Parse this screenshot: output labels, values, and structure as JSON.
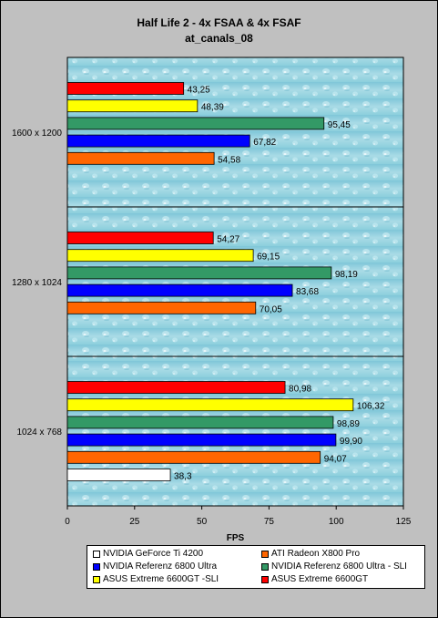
{
  "chart_data": {
    "type": "bar",
    "orientation": "horizontal",
    "title": "Half Life 2 - 4x FSAA & 4x FSAF",
    "subtitle": "at_canals_08",
    "xlabel": "FPS",
    "ylabel": "",
    "xlim": [
      0,
      125
    ],
    "x_ticks": [
      "0",
      "25",
      "50",
      "75",
      "100",
      "125"
    ],
    "grid": "horizontal group separators",
    "legend_position": "bottom",
    "categories": [
      "1600 x 1200",
      "1280 x 1024",
      "1024 x 768"
    ],
    "series": [
      {
        "name": "NVIDIA GeForce Ti 4200",
        "color": "#ffffff",
        "values": [
          null,
          null,
          38.3
        ],
        "labels": [
          "",
          "",
          "38,3"
        ]
      },
      {
        "name": "ATI Radeon X800 Pro",
        "color": "#ff6600",
        "values": [
          54.58,
          70.05,
          94.07
        ],
        "labels": [
          "54,58",
          "70,05",
          "94,07"
        ]
      },
      {
        "name": "NVIDIA  Referenz 6800 Ultra",
        "color": "#0000ff",
        "values": [
          67.82,
          83.68,
          99.9
        ],
        "labels": [
          "67,82",
          "83,68",
          "99,90"
        ]
      },
      {
        "name": "NVIDIA  Referenz 6800 Ultra - SLI",
        "color": "#339966",
        "values": [
          95.45,
          98.19,
          98.89
        ],
        "labels": [
          "95,45",
          "98,19",
          "98,89"
        ]
      },
      {
        "name": "ASUS Extreme 6600GT -SLI",
        "color": "#ffff00",
        "values": [
          48.39,
          69.15,
          106.32
        ],
        "labels": [
          "48,39",
          "69,15",
          "106,32"
        ]
      },
      {
        "name": "ASUS Extreme 6600GT",
        "color": "#ff0000",
        "values": [
          43.25,
          54.27,
          80.98
        ],
        "labels": [
          "43,25",
          "54,27",
          "80,98"
        ]
      }
    ]
  }
}
